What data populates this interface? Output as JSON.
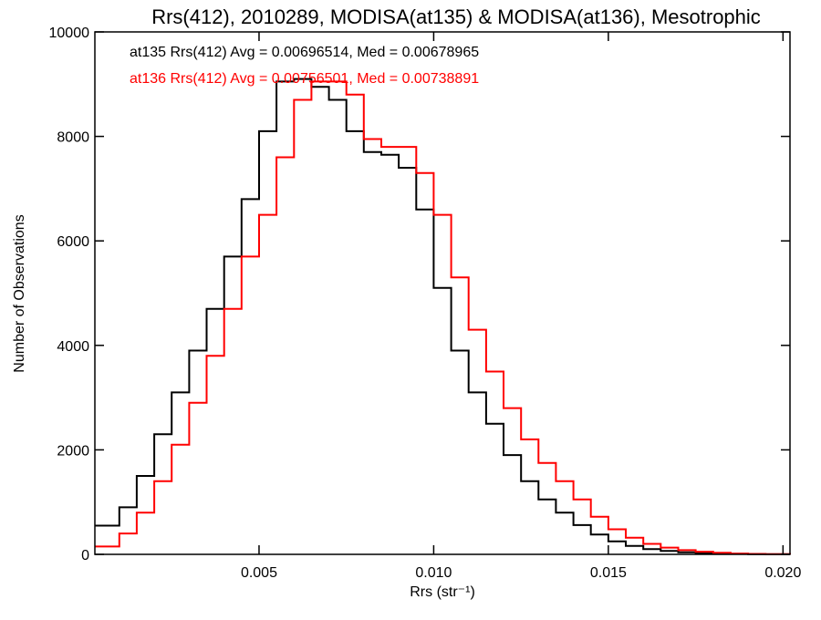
{
  "chart_data": {
    "type": "line",
    "title": "Rrs(412), 2010289, MODISA(at135) & MODISA(at136), Mesotrophic",
    "xlabel": "Rrs (str⁻¹)",
    "ylabel": "Number of Observations",
    "xlim": [
      0.0003,
      0.0202
    ],
    "ylim": [
      0,
      10000
    ],
    "x_ticks": [
      0.005,
      0.01,
      0.015,
      0.02
    ],
    "x_tick_labels": [
      "0.005",
      "0.010",
      "0.015",
      "0.020"
    ],
    "y_ticks": [
      0,
      2000,
      4000,
      6000,
      8000,
      10000
    ],
    "y_tick_labels": [
      "0",
      "2000",
      "4000",
      "6000",
      "8000",
      "10000"
    ],
    "grid": false,
    "legend_placement": "top-left",
    "annotations": [
      "at135 Rrs(412) Avg = 0.00696514, Med = 0.00678965",
      "at136 Rrs(412) Avg = 0.00756501, Med = 0.00738891"
    ],
    "series": [
      {
        "color": "#000000",
        "x": [
          0.0003,
          0.001,
          0.0015,
          0.002,
          0.0025,
          0.003,
          0.0035,
          0.004,
          0.0045,
          0.005,
          0.0055,
          0.006,
          0.0065,
          0.007,
          0.0075,
          0.008,
          0.0085,
          0.009,
          0.0095,
          0.01,
          0.0105,
          0.011,
          0.0115,
          0.012,
          0.0125,
          0.013,
          0.0135,
          0.014,
          0.0145,
          0.015,
          0.0155,
          0.016,
          0.0165,
          0.017,
          0.0175,
          0.018,
          0.0185,
          0.019,
          0.0195,
          0.0202
        ],
        "y": [
          550,
          900,
          1500,
          2300,
          3100,
          3900,
          4700,
          5700,
          6800,
          8100,
          9050,
          9100,
          8950,
          8700,
          8100,
          7700,
          7650,
          7400,
          6600,
          5100,
          3900,
          3100,
          2500,
          1900,
          1400,
          1050,
          800,
          560,
          380,
          250,
          160,
          100,
          65,
          40,
          25,
          15,
          8,
          4,
          2,
          0
        ]
      },
      {
        "color": "#ff0000",
        "x": [
          0.0003,
          0.001,
          0.0015,
          0.002,
          0.0025,
          0.003,
          0.0035,
          0.004,
          0.0045,
          0.005,
          0.0055,
          0.006,
          0.0065,
          0.007,
          0.0075,
          0.008,
          0.0085,
          0.009,
          0.0095,
          0.01,
          0.0105,
          0.011,
          0.0115,
          0.012,
          0.0125,
          0.013,
          0.0135,
          0.014,
          0.0145,
          0.015,
          0.0155,
          0.016,
          0.0165,
          0.017,
          0.0175,
          0.018,
          0.0185,
          0.019,
          0.0195,
          0.0202
        ],
        "y": [
          150,
          400,
          800,
          1400,
          2100,
          2900,
          3800,
          4700,
          5700,
          6500,
          7600,
          8700,
          9050,
          9050,
          8800,
          7950,
          7800,
          7800,
          7300,
          6500,
          5300,
          4300,
          3500,
          2800,
          2200,
          1750,
          1400,
          1050,
          720,
          480,
          320,
          200,
          130,
          80,
          50,
          30,
          15,
          8,
          4,
          0
        ]
      }
    ]
  }
}
